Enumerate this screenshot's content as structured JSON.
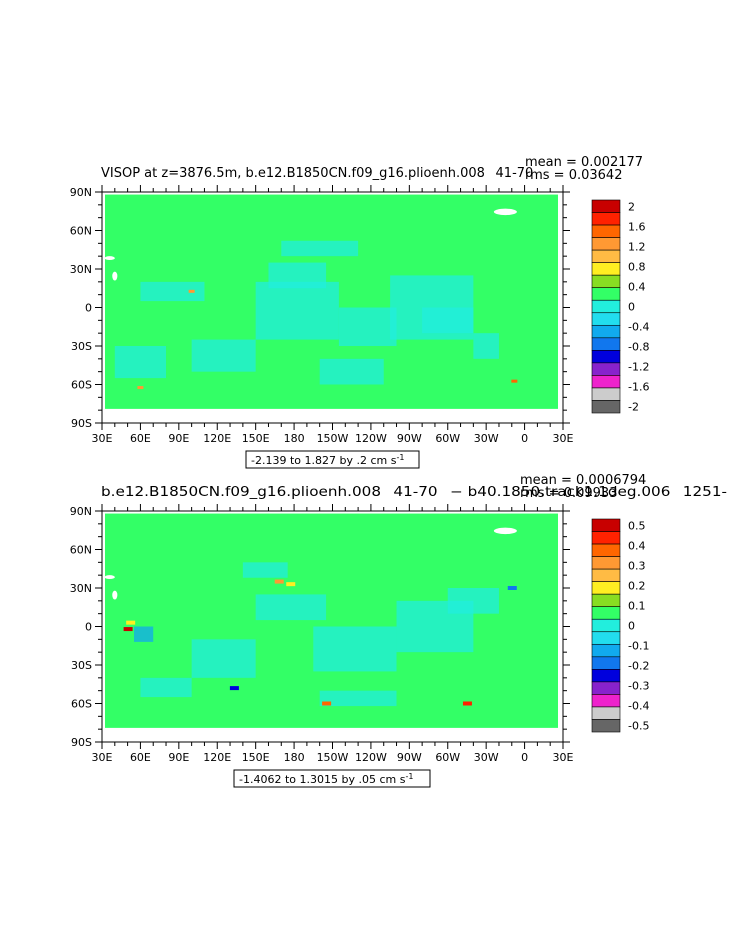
{
  "colors": {
    "land": "#ffffff",
    "background_ocean": "#33ff66",
    "ocean_neg": "#22eedd",
    "ocean_neg_strong": "#11aaee"
  },
  "panels": [
    {
      "title": "VISOP at z=3876.5m, b.e12.B1850CN.f09_g16.plioenh.008  41-70 ",
      "mean_text": "mean = 0.002177",
      "rms_text": "rms = 0.03642",
      "range_text": "-2.139 to 1.827 by .2 cm s",
      "range_sup": "-1",
      "colorbar": {
        "labels": [
          "2",
          "1.6",
          "1.2",
          "0.8",
          "0.4",
          "0",
          "-0.4",
          "-0.8",
          "-1.2",
          "-1.6",
          "-2"
        ],
        "colors": [
          "#c80000",
          "#ff2200",
          "#ff6600",
          "#ff9933",
          "#ffbb44",
          "#ffee22",
          "#88dd22",
          "#33ff66",
          "#22eedd",
          "#22ddee",
          "#11aaee",
          "#1177ee",
          "#0000dd",
          "#8822cc",
          "#ee22cc",
          "#cccccc",
          "#666666"
        ]
      }
    },
    {
      "title": "b.e12.B1850CN.f09_g16.plioenh.008  41-70  − b40.1850.track1.1deg.006  1251-",
      "mean_text": "mean = 0.0006794",
      "rms_text": "rms = 0.09933",
      "range_text": "-1.4062 to 1.3015 by .05 cm s",
      "range_sup": "-1",
      "colorbar": {
        "labels": [
          "0.5",
          "0.4",
          "0.3",
          "0.2",
          "0.1",
          "0",
          "-0.1",
          "-0.2",
          "-0.3",
          "-0.4",
          "-0.5"
        ],
        "colors": [
          "#c80000",
          "#ff2200",
          "#ff6600",
          "#ff9933",
          "#ffbb44",
          "#ffee22",
          "#88dd22",
          "#33ff66",
          "#22eedd",
          "#22ddee",
          "#11aaee",
          "#1177ee",
          "#0000dd",
          "#8822cc",
          "#ee22cc",
          "#cccccc",
          "#666666"
        ]
      }
    }
  ],
  "chart_data": [
    {
      "type": "heatmap",
      "title": "VISOP at z=3876.5m, b.e12.B1850CN.f09_g16.plioenh.008  41-70 ",
      "x_ticks": [
        "30E",
        "60E",
        "90E",
        "120E",
        "150E",
        "180",
        "150W",
        "120W",
        "90W",
        "60W",
        "30W",
        "0",
        "30E"
      ],
      "y_ticks": [
        "90N",
        "60N",
        "30N",
        "0",
        "30S",
        "60S",
        "90S"
      ],
      "xlim": [
        30,
        390
      ],
      "ylim": [
        -90,
        90
      ],
      "mean": 0.002177,
      "rms": 0.03642,
      "contour_min": -2.139,
      "contour_max": 1.827,
      "contour_interval": 0.2,
      "units": "cm s-1",
      "levels": [
        2,
        1.6,
        1.2,
        0.8,
        0.4,
        0,
        -0.4,
        -0.8,
        -1.2,
        -1.6,
        -2
      ]
    },
    {
      "type": "heatmap",
      "title": "b.e12.B1850CN.f09_g16.plioenh.008  41-70  − b40.1850.track1.1deg.006  1251-",
      "x_ticks": [
        "30E",
        "60E",
        "90E",
        "120E",
        "150E",
        "180",
        "150W",
        "120W",
        "90W",
        "60W",
        "30W",
        "0",
        "30E"
      ],
      "y_ticks": [
        "90N",
        "60N",
        "30N",
        "0",
        "30S",
        "60S",
        "90S"
      ],
      "xlim": [
        30,
        390
      ],
      "ylim": [
        -90,
        90
      ],
      "mean": 0.0006794,
      "rms": 0.09933,
      "contour_min": -1.4062,
      "contour_max": 1.3015,
      "contour_interval": 0.05,
      "units": "cm s-1",
      "levels": [
        0.5,
        0.4,
        0.3,
        0.2,
        0.1,
        0,
        -0.1,
        -0.2,
        -0.3,
        -0.4,
        -0.5
      ]
    }
  ]
}
